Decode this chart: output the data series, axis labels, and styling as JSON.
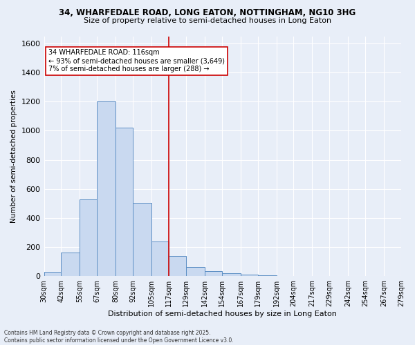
{
  "title1": "34, WHARFEDALE ROAD, LONG EATON, NOTTINGHAM, NG10 3HG",
  "title2": "Size of property relative to semi-detached houses in Long Eaton",
  "xlabel": "Distribution of semi-detached houses by size in Long Eaton",
  "ylabel": "Number of semi-detached properties",
  "bin_edges": [
    30,
    42,
    55,
    67,
    80,
    92,
    105,
    117,
    129,
    142,
    154,
    167,
    179,
    192,
    204,
    217,
    229,
    242,
    254,
    267,
    279
  ],
  "bar_heights": [
    30,
    160,
    530,
    1200,
    1020,
    505,
    240,
    140,
    65,
    35,
    20,
    10,
    5,
    2,
    1,
    1,
    0,
    0,
    0,
    0
  ],
  "bar_color": "#c9d9f0",
  "bar_edge_color": "#5b8ec4",
  "vline_x": 117,
  "vline_color": "#cc0000",
  "annotation_title": "34 WHARFEDALE ROAD: 116sqm",
  "annotation_line2": "← 93% of semi-detached houses are smaller (3,649)",
  "annotation_line3": "7% of semi-detached houses are larger (288) →",
  "annotation_box_color": "#ffffff",
  "annotation_box_edge": "#cc0000",
  "ylim": [
    0,
    1650
  ],
  "yticks": [
    0,
    200,
    400,
    600,
    800,
    1000,
    1200,
    1400,
    1600
  ],
  "background_color": "#e8eef8",
  "grid_color": "#ffffff",
  "footer1": "Contains HM Land Registry data © Crown copyright and database right 2025.",
  "footer2": "Contains public sector information licensed under the Open Government Licence v3.0."
}
